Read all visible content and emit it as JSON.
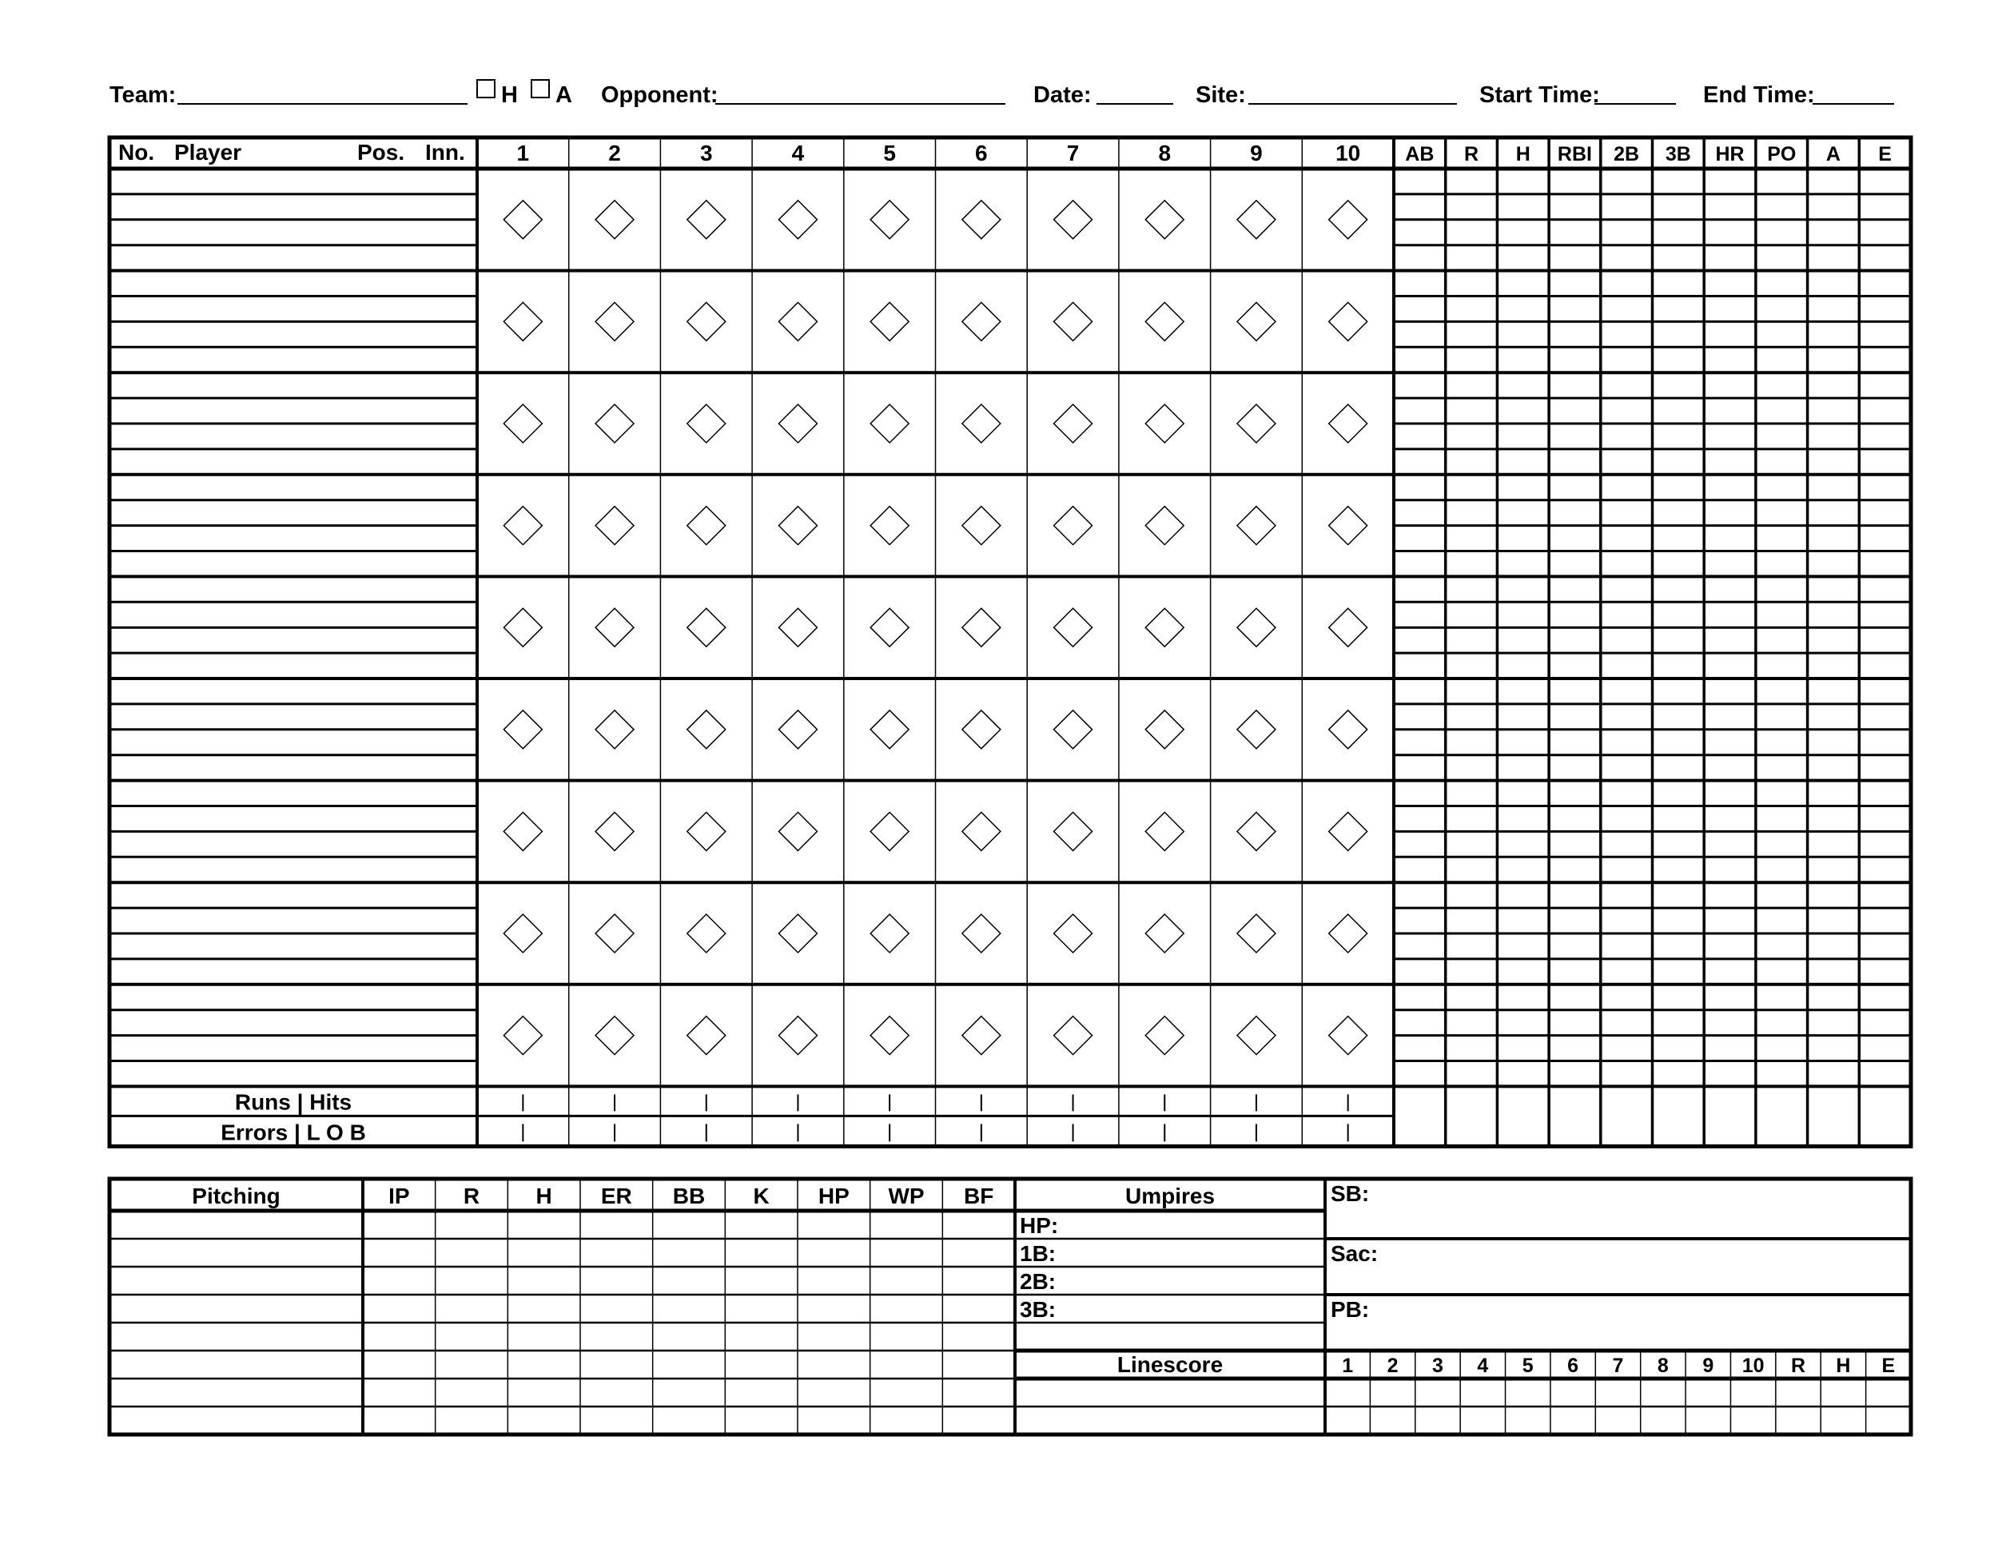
{
  "header": {
    "team_label": "Team:",
    "home_label": "H",
    "away_label": "A",
    "opponent_label": "Opponent:",
    "date_label": "Date:",
    "site_label": "Site:",
    "start_time_label": "Start Time:",
    "end_time_label": "End Time:"
  },
  "batting": {
    "no_label": "No.",
    "player_label": "Player",
    "pos_label": "Pos.",
    "inn_label": "Inn.",
    "innings": [
      "1",
      "2",
      "3",
      "4",
      "5",
      "6",
      "7",
      "8",
      "9",
      "10"
    ],
    "stats": [
      "AB",
      "R",
      "H",
      "RBI",
      "2B",
      "3B",
      "HR",
      "PO",
      "A",
      "E"
    ],
    "runs_hits_label": "Runs | Hits",
    "errors_lob_label": "Errors | L O B"
  },
  "pitching": {
    "title": "Pitching",
    "columns": [
      "IP",
      "R",
      "H",
      "ER",
      "BB",
      "K",
      "HP",
      "WP",
      "BF"
    ]
  },
  "umpires": {
    "title": "Umpires",
    "positions": [
      "HP:",
      "1B:",
      "2B:",
      "3B:"
    ]
  },
  "notes": {
    "sb_label": "SB:",
    "sac_label": "Sac:",
    "pb_label": "PB:"
  },
  "linescore": {
    "title": "Linescore",
    "columns": [
      "1",
      "2",
      "3",
      "4",
      "5",
      "6",
      "7",
      "8",
      "9",
      "10",
      "R",
      "H",
      "E"
    ]
  }
}
